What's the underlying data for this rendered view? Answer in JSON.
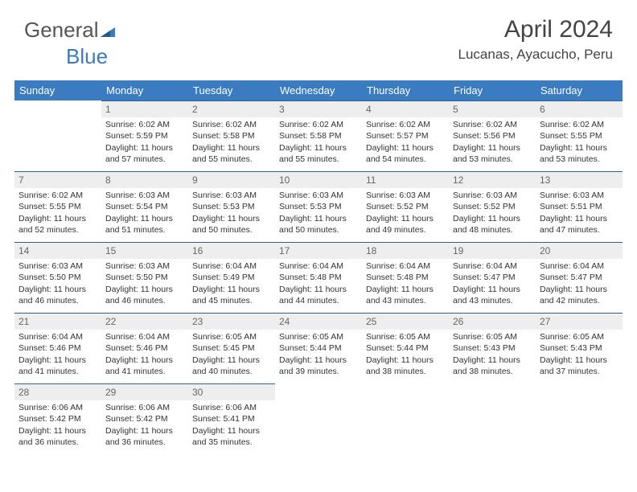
{
  "brand": {
    "part1": "General",
    "part2": "Blue"
  },
  "header": {
    "month_title": "April 2024",
    "location": "Lucanas, Ayacucho, Peru"
  },
  "colors": {
    "header_bg": "#3b7bbf",
    "header_text": "#ffffff",
    "daynum_bg": "#eeeeee",
    "daynum_color": "#666666",
    "rule": "#2f5f8f",
    "body_text": "#333333",
    "logo_blue": "#3b7bbf"
  },
  "weekdays": [
    "Sunday",
    "Monday",
    "Tuesday",
    "Wednesday",
    "Thursday",
    "Friday",
    "Saturday"
  ],
  "weeks": [
    [
      {
        "day": "",
        "sunrise": "",
        "sunset": "",
        "daylight1": "",
        "daylight2": ""
      },
      {
        "day": "1",
        "sunrise": "Sunrise: 6:02 AM",
        "sunset": "Sunset: 5:59 PM",
        "daylight1": "Daylight: 11 hours",
        "daylight2": "and 57 minutes."
      },
      {
        "day": "2",
        "sunrise": "Sunrise: 6:02 AM",
        "sunset": "Sunset: 5:58 PM",
        "daylight1": "Daylight: 11 hours",
        "daylight2": "and 55 minutes."
      },
      {
        "day": "3",
        "sunrise": "Sunrise: 6:02 AM",
        "sunset": "Sunset: 5:58 PM",
        "daylight1": "Daylight: 11 hours",
        "daylight2": "and 55 minutes."
      },
      {
        "day": "4",
        "sunrise": "Sunrise: 6:02 AM",
        "sunset": "Sunset: 5:57 PM",
        "daylight1": "Daylight: 11 hours",
        "daylight2": "and 54 minutes."
      },
      {
        "day": "5",
        "sunrise": "Sunrise: 6:02 AM",
        "sunset": "Sunset: 5:56 PM",
        "daylight1": "Daylight: 11 hours",
        "daylight2": "and 53 minutes."
      },
      {
        "day": "6",
        "sunrise": "Sunrise: 6:02 AM",
        "sunset": "Sunset: 5:55 PM",
        "daylight1": "Daylight: 11 hours",
        "daylight2": "and 53 minutes."
      }
    ],
    [
      {
        "day": "7",
        "sunrise": "Sunrise: 6:02 AM",
        "sunset": "Sunset: 5:55 PM",
        "daylight1": "Daylight: 11 hours",
        "daylight2": "and 52 minutes."
      },
      {
        "day": "8",
        "sunrise": "Sunrise: 6:03 AM",
        "sunset": "Sunset: 5:54 PM",
        "daylight1": "Daylight: 11 hours",
        "daylight2": "and 51 minutes."
      },
      {
        "day": "9",
        "sunrise": "Sunrise: 6:03 AM",
        "sunset": "Sunset: 5:53 PM",
        "daylight1": "Daylight: 11 hours",
        "daylight2": "and 50 minutes."
      },
      {
        "day": "10",
        "sunrise": "Sunrise: 6:03 AM",
        "sunset": "Sunset: 5:53 PM",
        "daylight1": "Daylight: 11 hours",
        "daylight2": "and 50 minutes."
      },
      {
        "day": "11",
        "sunrise": "Sunrise: 6:03 AM",
        "sunset": "Sunset: 5:52 PM",
        "daylight1": "Daylight: 11 hours",
        "daylight2": "and 49 minutes."
      },
      {
        "day": "12",
        "sunrise": "Sunrise: 6:03 AM",
        "sunset": "Sunset: 5:52 PM",
        "daylight1": "Daylight: 11 hours",
        "daylight2": "and 48 minutes."
      },
      {
        "day": "13",
        "sunrise": "Sunrise: 6:03 AM",
        "sunset": "Sunset: 5:51 PM",
        "daylight1": "Daylight: 11 hours",
        "daylight2": "and 47 minutes."
      }
    ],
    [
      {
        "day": "14",
        "sunrise": "Sunrise: 6:03 AM",
        "sunset": "Sunset: 5:50 PM",
        "daylight1": "Daylight: 11 hours",
        "daylight2": "and 46 minutes."
      },
      {
        "day": "15",
        "sunrise": "Sunrise: 6:03 AM",
        "sunset": "Sunset: 5:50 PM",
        "daylight1": "Daylight: 11 hours",
        "daylight2": "and 46 minutes."
      },
      {
        "day": "16",
        "sunrise": "Sunrise: 6:04 AM",
        "sunset": "Sunset: 5:49 PM",
        "daylight1": "Daylight: 11 hours",
        "daylight2": "and 45 minutes."
      },
      {
        "day": "17",
        "sunrise": "Sunrise: 6:04 AM",
        "sunset": "Sunset: 5:48 PM",
        "daylight1": "Daylight: 11 hours",
        "daylight2": "and 44 minutes."
      },
      {
        "day": "18",
        "sunrise": "Sunrise: 6:04 AM",
        "sunset": "Sunset: 5:48 PM",
        "daylight1": "Daylight: 11 hours",
        "daylight2": "and 43 minutes."
      },
      {
        "day": "19",
        "sunrise": "Sunrise: 6:04 AM",
        "sunset": "Sunset: 5:47 PM",
        "daylight1": "Daylight: 11 hours",
        "daylight2": "and 43 minutes."
      },
      {
        "day": "20",
        "sunrise": "Sunrise: 6:04 AM",
        "sunset": "Sunset: 5:47 PM",
        "daylight1": "Daylight: 11 hours",
        "daylight2": "and 42 minutes."
      }
    ],
    [
      {
        "day": "21",
        "sunrise": "Sunrise: 6:04 AM",
        "sunset": "Sunset: 5:46 PM",
        "daylight1": "Daylight: 11 hours",
        "daylight2": "and 41 minutes."
      },
      {
        "day": "22",
        "sunrise": "Sunrise: 6:04 AM",
        "sunset": "Sunset: 5:46 PM",
        "daylight1": "Daylight: 11 hours",
        "daylight2": "and 41 minutes."
      },
      {
        "day": "23",
        "sunrise": "Sunrise: 6:05 AM",
        "sunset": "Sunset: 5:45 PM",
        "daylight1": "Daylight: 11 hours",
        "daylight2": "and 40 minutes."
      },
      {
        "day": "24",
        "sunrise": "Sunrise: 6:05 AM",
        "sunset": "Sunset: 5:44 PM",
        "daylight1": "Daylight: 11 hours",
        "daylight2": "and 39 minutes."
      },
      {
        "day": "25",
        "sunrise": "Sunrise: 6:05 AM",
        "sunset": "Sunset: 5:44 PM",
        "daylight1": "Daylight: 11 hours",
        "daylight2": "and 38 minutes."
      },
      {
        "day": "26",
        "sunrise": "Sunrise: 6:05 AM",
        "sunset": "Sunset: 5:43 PM",
        "daylight1": "Daylight: 11 hours",
        "daylight2": "and 38 minutes."
      },
      {
        "day": "27",
        "sunrise": "Sunrise: 6:05 AM",
        "sunset": "Sunset: 5:43 PM",
        "daylight1": "Daylight: 11 hours",
        "daylight2": "and 37 minutes."
      }
    ],
    [
      {
        "day": "28",
        "sunrise": "Sunrise: 6:06 AM",
        "sunset": "Sunset: 5:42 PM",
        "daylight1": "Daylight: 11 hours",
        "daylight2": "and 36 minutes."
      },
      {
        "day": "29",
        "sunrise": "Sunrise: 6:06 AM",
        "sunset": "Sunset: 5:42 PM",
        "daylight1": "Daylight: 11 hours",
        "daylight2": "and 36 minutes."
      },
      {
        "day": "30",
        "sunrise": "Sunrise: 6:06 AM",
        "sunset": "Sunset: 5:41 PM",
        "daylight1": "Daylight: 11 hours",
        "daylight2": "and 35 minutes."
      },
      {
        "day": "",
        "sunrise": "",
        "sunset": "",
        "daylight1": "",
        "daylight2": ""
      },
      {
        "day": "",
        "sunrise": "",
        "sunset": "",
        "daylight1": "",
        "daylight2": ""
      },
      {
        "day": "",
        "sunrise": "",
        "sunset": "",
        "daylight1": "",
        "daylight2": ""
      },
      {
        "day": "",
        "sunrise": "",
        "sunset": "",
        "daylight1": "",
        "daylight2": ""
      }
    ]
  ]
}
